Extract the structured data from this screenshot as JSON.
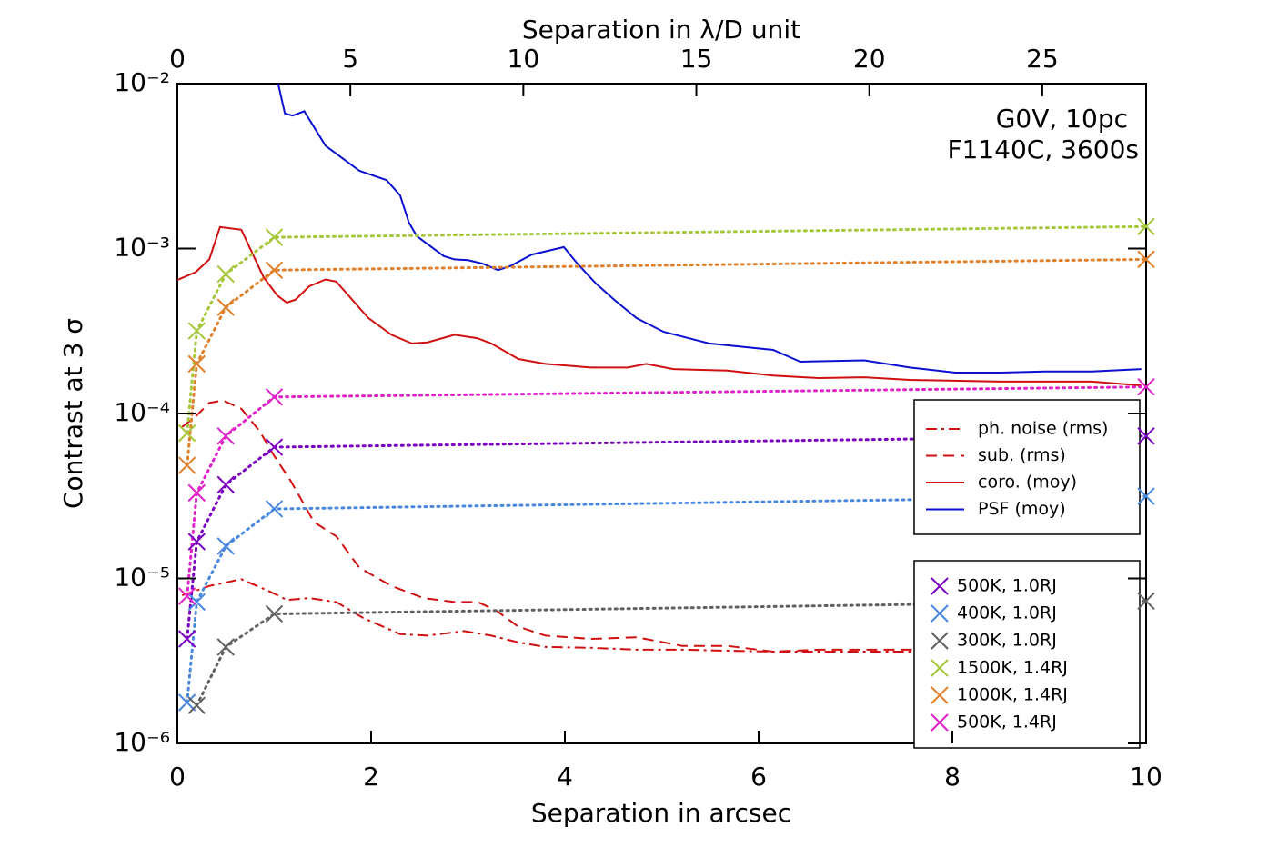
{
  "chart_data": {
    "type": "line",
    "annotations": [
      "G0V, 10pc",
      "F1140C, 3600s"
    ],
    "xlabel": "Separation in arcsec",
    "x2label": "Separation in λ/D unit",
    "ylabel": "Contrast at 3 σ",
    "xlim": [
      0,
      10
    ],
    "xticks": [
      0,
      2,
      4,
      6,
      8,
      10
    ],
    "x2lim": [
      0,
      28
    ],
    "x2ticks": [
      0,
      5,
      10,
      15,
      20,
      25
    ],
    "ylim": [
      1e-06,
      0.01
    ],
    "ylog": true,
    "yticks": [
      {
        "value": 1e-06,
        "label": "10⁻⁶"
      },
      {
        "value": 1e-05,
        "label": "10⁻⁵"
      },
      {
        "value": 0.0001,
        "label": "10⁻⁴"
      },
      {
        "value": 0.001,
        "label": "10⁻³"
      },
      {
        "value": 0.01,
        "label": "10⁻²"
      }
    ],
    "series": [
      {
        "name": "ph. noise (rms)",
        "color": "#d01010",
        "linestyle": "dashdot",
        "x": [
          0.05,
          0.33,
          0.66,
          0.94,
          1.13,
          1.36,
          1.64,
          1.92,
          2.3,
          2.58,
          2.96,
          3.24,
          3.52,
          3.8,
          4.27,
          4.74,
          5.21,
          6.15,
          7.56,
          9.95
        ],
        "values": [
          7.9e-06,
          9e-06,
          9.9e-06,
          8.4e-06,
          7.4e-06,
          7.6e-06,
          7.2e-06,
          5.75e-06,
          4.6e-06,
          4.5e-06,
          4.8e-06,
          4.5e-06,
          4.1e-06,
          3.84e-06,
          3.8e-06,
          3.7e-06,
          3.7e-06,
          3.6e-06,
          3.6e-06,
          3.6e-06
        ]
      },
      {
        "name": "sub. (rms)",
        "color": "#d01010",
        "linestyle": "dashed",
        "x": [
          0.05,
          0.19,
          0.33,
          0.47,
          0.66,
          0.85,
          0.99,
          1.17,
          1.41,
          1.64,
          1.88,
          2.21,
          2.54,
          2.86,
          3.1,
          3.29,
          3.52,
          3.8,
          4.27,
          4.74,
          5.21,
          5.68,
          6.15,
          6.62,
          7.09,
          7.56,
          9.95
        ],
        "values": [
          8.3e-05,
          9.6e-05,
          0.000116,
          0.00012,
          0.000107,
          7.8e-05,
          5.65e-05,
          3.9e-05,
          2.2e-05,
          1.8e-05,
          1.16e-05,
          9e-06,
          7.6e-06,
          7.2e-06,
          7.2e-06,
          6.4e-06,
          5.1e-06,
          4.5e-06,
          4.3e-06,
          4.4e-06,
          3.9e-06,
          3.9e-06,
          3.6e-06,
          3.7e-06,
          3.7e-06,
          3.7e-06,
          3.6e-06
        ]
      },
      {
        "name": "coro. (moy)",
        "color": "#d01010",
        "linestyle": "solid",
        "x": [
          0,
          0.19,
          0.33,
          0.44,
          0.66,
          0.89,
          1.03,
          1.13,
          1.22,
          1.36,
          1.53,
          1.64,
          1.97,
          2.21,
          2.42,
          2.58,
          2.86,
          3.1,
          3.24,
          3.52,
          3.8,
          4.27,
          4.65,
          4.84,
          5.12,
          5.68,
          6.15,
          6.62,
          7.09,
          7.56,
          8.5,
          9.44,
          9.95
        ],
        "values": [
          0.000645,
          0.00072,
          0.00086,
          0.00135,
          0.0013,
          0.00067,
          0.00052,
          0.00047,
          0.00049,
          0.00059,
          0.00065,
          0.00063,
          0.00038,
          0.0003,
          0.000266,
          0.00027,
          0.0003,
          0.000286,
          0.000266,
          0.000214,
          0.0002,
          0.00019,
          0.00019,
          0.0002,
          0.000186,
          0.000182,
          0.00017,
          0.000164,
          0.000166,
          0.00016,
          0.000156,
          0.000156,
          0.000148
        ]
      },
      {
        "name": "PSF (moy)",
        "color": "#0a10d0",
        "linestyle": "solid",
        "x": [
          1.04,
          1.11,
          1.19,
          1.31,
          1.53,
          1.88,
          2.16,
          2.3,
          2.39,
          2.47,
          2.75,
          2.86,
          3.0,
          3.15,
          3.31,
          3.43,
          3.66,
          3.99,
          4.13,
          4.32,
          4.51,
          4.74,
          5.02,
          5.49,
          6.15,
          6.43,
          7.09,
          7.56,
          8.03,
          8.5,
          8.97,
          9.44,
          9.95
        ],
        "values": [
          0.01,
          0.0066,
          0.0064,
          0.0068,
          0.0042,
          0.00296,
          0.0026,
          0.0021,
          0.00144,
          0.00119,
          0.0009,
          0.00086,
          0.00085,
          0.00081,
          0.00074,
          0.00078,
          0.00092,
          0.00102,
          0.00081,
          0.000614,
          0.000489,
          0.000379,
          0.000313,
          0.000266,
          0.000243,
          0.000206,
          0.00021,
          0.00019,
          0.000177,
          0.000177,
          0.00018,
          0.00018,
          0.000186
        ]
      },
      {
        "name": "500K, 1.0RJ",
        "color": "#7a00c0",
        "linestyle": "dotted",
        "marker": "x",
        "x": [
          0.1,
          0.2,
          0.5,
          1,
          10
        ],
        "values": [
          4.3e-06,
          1.67e-05,
          3.7e-05,
          6.25e-05,
          7.3e-05
        ]
      },
      {
        "name": "400K, 1.0RJ",
        "color": "#4a88e0",
        "linestyle": "dotted",
        "marker": "x",
        "x": [
          0.1,
          0.2,
          0.5,
          1,
          10
        ],
        "values": [
          1.77e-06,
          7.2e-06,
          1.57e-05,
          2.64e-05,
          3.15e-05
        ]
      },
      {
        "name": "300K, 1.0RJ",
        "color": "#606060",
        "linestyle": "dotted",
        "marker": "x",
        "x": [
          0.2,
          0.5,
          1,
          10
        ],
        "values": [
          1.7e-06,
          3.84e-06,
          6.1e-06,
          7.3e-06
        ]
      },
      {
        "name": "1500K, 1.4RJ",
        "color": "#a4c83a",
        "linestyle": "dotted",
        "marker": "x",
        "x": [
          0.1,
          0.2,
          0.5,
          1,
          10
        ],
        "values": [
          7.6e-05,
          0.000317,
          0.0007,
          0.00117,
          0.00136
        ]
      },
      {
        "name": "1000K, 1.4RJ",
        "color": "#e0802a",
        "linestyle": "dotted",
        "marker": "x",
        "x": [
          0.1,
          0.2,
          0.5,
          1,
          10
        ],
        "values": [
          4.85e-05,
          0.0002,
          0.00044,
          0.00074,
          0.00086
        ]
      },
      {
        "name": "500K, 1.4RJ",
        "color": "#e020c8",
        "linestyle": "dotted",
        "marker": "x",
        "x": [
          0.1,
          0.2,
          0.5,
          1,
          10
        ],
        "values": [
          7.8e-06,
          3.3e-05,
          7.3e-05,
          0.000126,
          0.000145
        ]
      }
    ]
  }
}
